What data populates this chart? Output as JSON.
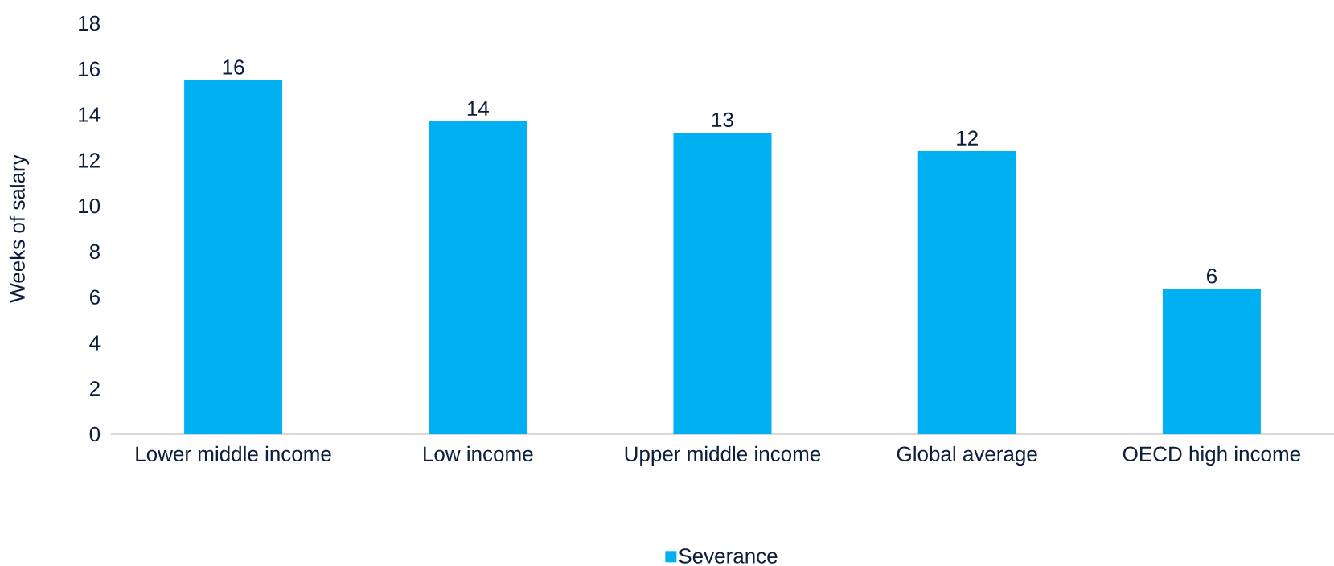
{
  "chart_data": {
    "type": "bar",
    "ylabel": "Weeks of salary",
    "categories": [
      "Lower middle income",
      "Low income",
      "Upper middle income",
      "Global average",
      "OECD high income"
    ],
    "series": [
      {
        "name": "Severance",
        "color": "#00b0f0",
        "values": [
          15.5,
          13.7,
          13.2,
          12.4,
          6.35
        ],
        "value_labels": [
          "16",
          "14",
          "13",
          "12",
          "6"
        ]
      }
    ],
    "ylim": [
      0,
      18
    ],
    "yticks": [
      0,
      2,
      4,
      6,
      8,
      10,
      12,
      14,
      16,
      18
    ],
    "grid": false,
    "legend": "bottom"
  }
}
